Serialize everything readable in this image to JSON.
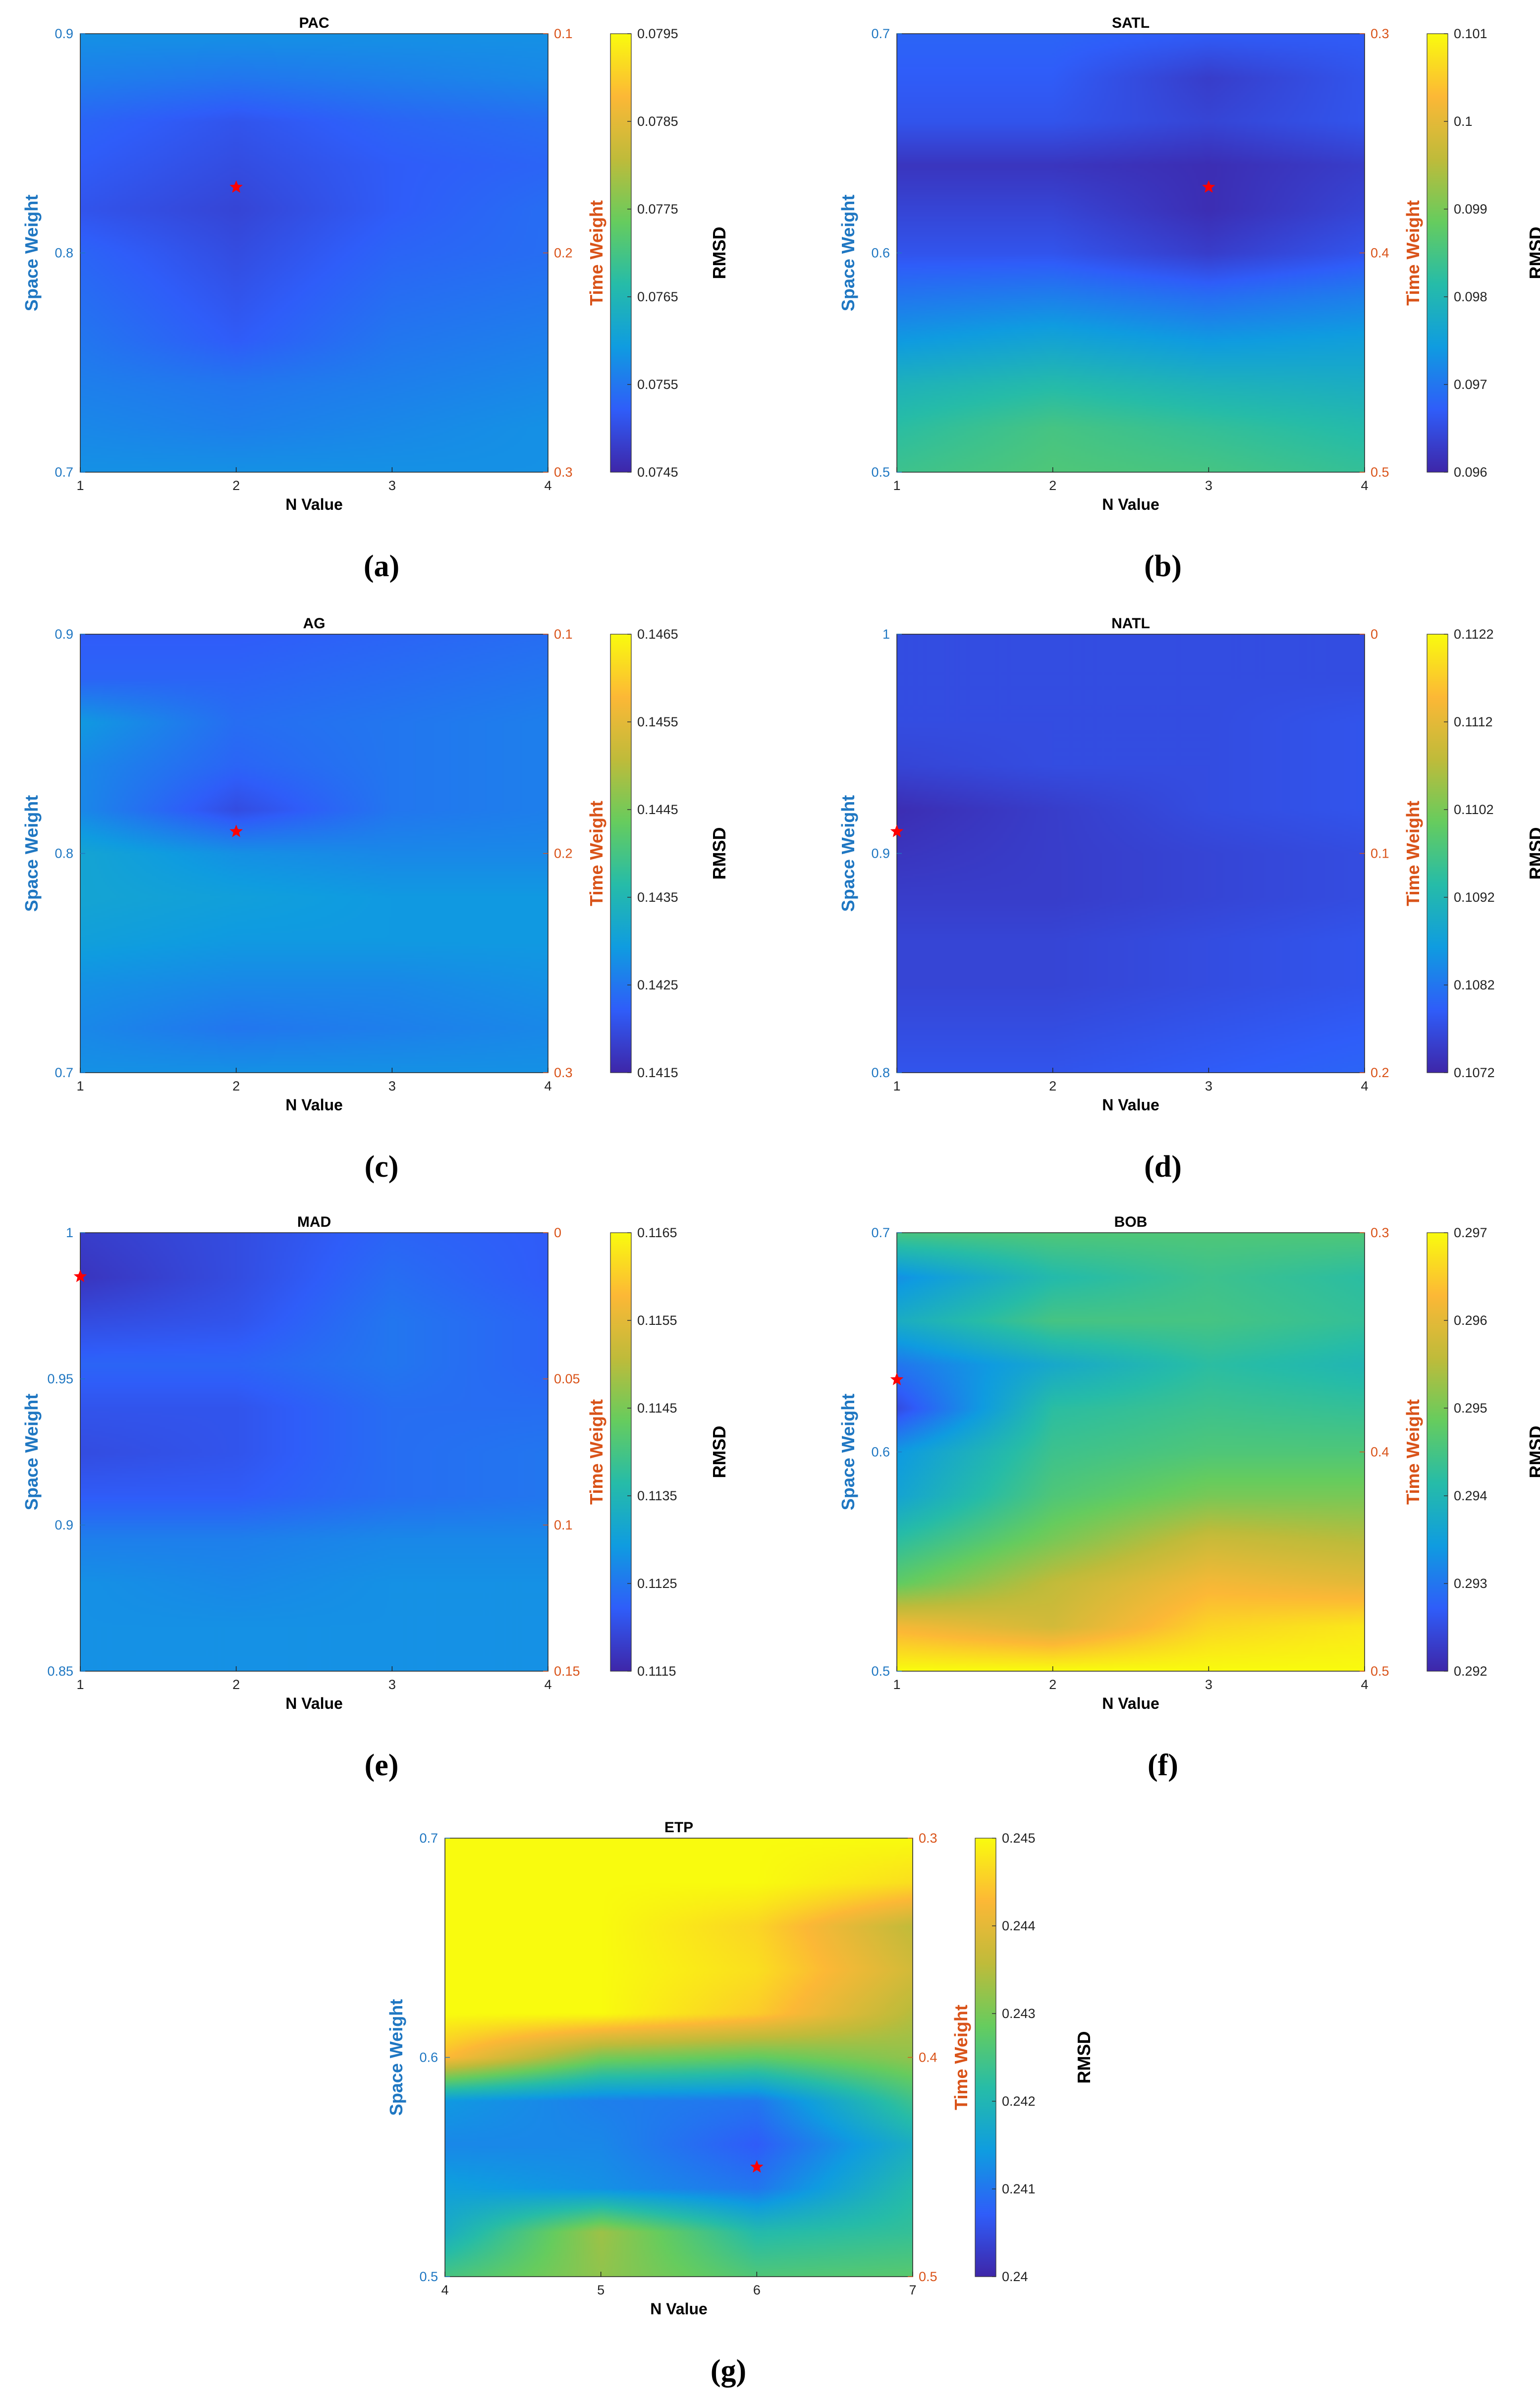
{
  "figure": {
    "space_axis_label": "Space Weight",
    "time_axis_label": "Time Weight",
    "x_axis_label": "N Value",
    "colorbar_label": "RMSD",
    "colors": {
      "space_axis": "#1f77c2",
      "time_axis": "#d95319",
      "marker": "#ff0000",
      "frame": "#000000"
    },
    "colormap": [
      "#3e26a8",
      "#2f5df9",
      "#0f9ce0",
      "#26bca8",
      "#66cc5e",
      "#bfbb3a",
      "#fcb836",
      "#f9fb0e"
    ]
  },
  "chart_data": [
    {
      "type": "heatmap",
      "id": "a",
      "title": "PAC",
      "caption": "(a)",
      "x": [
        1,
        2,
        3,
        4
      ],
      "xticks": [
        "1",
        "2",
        "3",
        "4"
      ],
      "ylim": [
        0.7,
        0.9
      ],
      "yticks": [
        "0.7",
        "0.8",
        "0.9"
      ],
      "y2ticks": [
        "0.3",
        "0.2",
        "0.1"
      ],
      "clim": [
        0.0745,
        0.0795
      ],
      "cticks": [
        "0.0745",
        "0.0755",
        "0.0765",
        "0.0775",
        "0.0785",
        "0.0795"
      ],
      "marker": {
        "x": 2,
        "y": 0.83
      },
      "y": [
        0.7,
        0.72,
        0.74,
        0.76,
        0.78,
        0.8,
        0.82,
        0.84,
        0.86,
        0.88,
        0.9
      ],
      "z": [
        [
          0.0758,
          0.0758,
          0.0758,
          0.0758
        ],
        [
          0.0757,
          0.0756,
          0.0757,
          0.0758
        ],
        [
          0.0756,
          0.0755,
          0.0756,
          0.0757
        ],
        [
          0.0755,
          0.0752,
          0.0755,
          0.0756
        ],
        [
          0.0754,
          0.0751,
          0.0754,
          0.0755
        ],
        [
          0.0753,
          0.075,
          0.0753,
          0.0754
        ],
        [
          0.0751,
          0.0749,
          0.0752,
          0.0754
        ],
        [
          0.0752,
          0.075,
          0.0752,
          0.0753
        ],
        [
          0.0753,
          0.0751,
          0.0753,
          0.0754
        ],
        [
          0.0756,
          0.0755,
          0.0756,
          0.0757
        ],
        [
          0.0758,
          0.0758,
          0.0758,
          0.0758
        ]
      ]
    },
    {
      "type": "heatmap",
      "id": "b",
      "title": "SATL",
      "caption": "(b)",
      "x": [
        1,
        2,
        3,
        4
      ],
      "xticks": [
        "1",
        "2",
        "3",
        "4"
      ],
      "ylim": [
        0.5,
        0.7
      ],
      "yticks": [
        "0.5",
        "0.6",
        "0.7"
      ],
      "y2ticks": [
        "0.5",
        "0.4",
        "0.3"
      ],
      "clim": [
        0.096,
        0.101
      ],
      "cticks": [
        "0.096",
        "0.097",
        "0.098",
        "0.099",
        "0.1",
        "0.101"
      ],
      "marker": {
        "x": 3,
        "y": 0.63
      },
      "y": [
        0.5,
        0.52,
        0.54,
        0.56,
        0.58,
        0.6,
        0.62,
        0.64,
        0.66,
        0.68,
        0.7
      ],
      "z": [
        [
          0.0984,
          0.0986,
          0.0985,
          0.0983
        ],
        [
          0.0982,
          0.0985,
          0.0983,
          0.0981
        ],
        [
          0.0979,
          0.0981,
          0.0979,
          0.0978
        ],
        [
          0.0974,
          0.0976,
          0.0974,
          0.0975
        ],
        [
          0.097,
          0.0971,
          0.0969,
          0.0971
        ],
        [
          0.0966,
          0.0966,
          0.0963,
          0.0966
        ],
        [
          0.0964,
          0.0964,
          0.0961,
          0.0964
        ],
        [
          0.0962,
          0.0962,
          0.0961,
          0.0963
        ],
        [
          0.0966,
          0.0966,
          0.0964,
          0.0966
        ],
        [
          0.0967,
          0.0967,
          0.0963,
          0.0966
        ],
        [
          0.0968,
          0.0968,
          0.0967,
          0.0967
        ]
      ]
    },
    {
      "type": "heatmap",
      "id": "c",
      "title": "AG",
      "caption": "(c)",
      "x": [
        1,
        2,
        3,
        4
      ],
      "xticks": [
        "1",
        "2",
        "3",
        "4"
      ],
      "ylim": [
        0.7,
        0.9
      ],
      "yticks": [
        "0.7",
        "0.8",
        "0.9"
      ],
      "y2ticks": [
        "0.3",
        "0.2",
        "0.1"
      ],
      "clim": [
        0.1415,
        0.1465
      ],
      "cticks": [
        "0.1415",
        "0.1425",
        "0.1435",
        "0.1445",
        "0.1455",
        "0.1465"
      ],
      "marker": {
        "x": 2,
        "y": 0.81
      },
      "y": [
        0.7,
        0.72,
        0.74,
        0.76,
        0.78,
        0.8,
        0.82,
        0.84,
        0.86,
        0.88,
        0.9
      ],
      "z": [
        [
          0.1428,
          0.1428,
          0.1428,
          0.1428
        ],
        [
          0.1427,
          0.1425,
          0.1426,
          0.1427
        ],
        [
          0.1428,
          0.1427,
          0.1427,
          0.1428
        ],
        [
          0.143,
          0.1429,
          0.1429,
          0.1429
        ],
        [
          0.1431,
          0.143,
          0.1429,
          0.1429
        ],
        [
          0.1431,
          0.1428,
          0.1427,
          0.1427
        ],
        [
          0.1427,
          0.142,
          0.1425,
          0.1426
        ],
        [
          0.1427,
          0.1423,
          0.1425,
          0.1426
        ],
        [
          0.1429,
          0.1424,
          0.1425,
          0.1426
        ],
        [
          0.1423,
          0.1423,
          0.1424,
          0.1425
        ],
        [
          0.1422,
          0.1422,
          0.1423,
          0.1424
        ]
      ]
    },
    {
      "type": "heatmap",
      "id": "d",
      "title": "NATL",
      "caption": "(d)",
      "x": [
        1,
        2,
        3,
        4
      ],
      "xticks": [
        "1",
        "2",
        "3",
        "4"
      ],
      "ylim": [
        0.8,
        1.0
      ],
      "yticks": [
        "0.8",
        "0.9",
        "1"
      ],
      "y2ticks": [
        "0.2",
        "0.1",
        "0"
      ],
      "clim": [
        0.1072,
        0.1122
      ],
      "cticks": [
        "0.1072",
        "0.1082",
        "0.1092",
        "0.1102",
        "0.1112",
        "0.1122"
      ],
      "marker": {
        "x": 1,
        "y": 0.91
      },
      "y": [
        0.8,
        0.82,
        0.84,
        0.86,
        0.88,
        0.9,
        0.92,
        0.94,
        0.96,
        0.98,
        1.0
      ],
      "z": [
        [
          0.1078,
          0.1078,
          0.1079,
          0.108
        ],
        [
          0.1077,
          0.1077,
          0.1078,
          0.1079
        ],
        [
          0.1076,
          0.1076,
          0.1077,
          0.1078
        ],
        [
          0.1076,
          0.1076,
          0.1077,
          0.1078
        ],
        [
          0.1075,
          0.1075,
          0.1076,
          0.1077
        ],
        [
          0.1074,
          0.1075,
          0.1076,
          0.1077
        ],
        [
          0.1073,
          0.1075,
          0.1077,
          0.1078
        ],
        [
          0.1076,
          0.1077,
          0.1077,
          0.1078
        ],
        [
          0.1077,
          0.1077,
          0.1077,
          0.1078
        ],
        [
          0.1077,
          0.1077,
          0.1077,
          0.1077
        ],
        [
          0.1077,
          0.1077,
          0.1077,
          0.1077
        ]
      ]
    },
    {
      "type": "heatmap",
      "id": "e",
      "title": "MAD",
      "caption": "(e)",
      "x": [
        1,
        2,
        3,
        4
      ],
      "xticks": [
        "1",
        "2",
        "3",
        "4"
      ],
      "ylim": [
        0.85,
        1.0
      ],
      "yticks": [
        "0.85",
        "0.9",
        "0.95",
        "1"
      ],
      "y2ticks": [
        "0.15",
        "0.1",
        "0.05",
        "0"
      ],
      "clim": [
        0.1115,
        0.1165
      ],
      "cticks": [
        "0.1115",
        "0.1125",
        "0.1135",
        "0.1145",
        "0.1155",
        "0.1165"
      ],
      "marker": {
        "x": 1,
        "y": 0.985
      },
      "y": [
        0.85,
        0.865,
        0.88,
        0.895,
        0.91,
        0.925,
        0.94,
        0.955,
        0.97,
        0.985,
        1.0
      ],
      "z": [
        [
          0.1128,
          0.1128,
          0.1128,
          0.1128
        ],
        [
          0.1128,
          0.1128,
          0.1128,
          0.1128
        ],
        [
          0.1128,
          0.1127,
          0.1128,
          0.1128
        ],
        [
          0.1126,
          0.1126,
          0.1127,
          0.1127
        ],
        [
          0.1122,
          0.1122,
          0.1124,
          0.1125
        ],
        [
          0.112,
          0.1121,
          0.1124,
          0.1125
        ],
        [
          0.1121,
          0.1121,
          0.1124,
          0.1124
        ],
        [
          0.1123,
          0.1123,
          0.1125,
          0.1123
        ],
        [
          0.112,
          0.1121,
          0.1125,
          0.1123
        ],
        [
          0.1117,
          0.112,
          0.1124,
          0.1122
        ],
        [
          0.1118,
          0.112,
          0.1123,
          0.1122
        ]
      ]
    },
    {
      "type": "heatmap",
      "id": "f",
      "title": "BOB",
      "caption": "(f)",
      "x": [
        1,
        2,
        3,
        4
      ],
      "xticks": [
        "1",
        "2",
        "3",
        "4"
      ],
      "ylim": [
        0.5,
        0.7
      ],
      "yticks": [
        "0.5",
        "0.6",
        "0.7"
      ],
      "y2ticks": [
        "0.5",
        "0.4",
        "0.3"
      ],
      "clim": [
        0.292,
        0.297
      ],
      "cticks": [
        "0.292",
        "0.293",
        "0.294",
        "0.295",
        "0.296",
        "0.297"
      ],
      "marker": {
        "x": 1,
        "y": 0.633
      },
      "y": [
        0.5,
        0.52,
        0.54,
        0.56,
        0.58,
        0.6,
        0.62,
        0.64,
        0.66,
        0.68,
        0.7
      ],
      "z": [
        [
          0.297,
          0.297,
          0.297,
          0.297
        ],
        [
          0.2962,
          0.2958,
          0.2966,
          0.2968
        ],
        [
          0.2948,
          0.2956,
          0.2962,
          0.296
        ],
        [
          0.2942,
          0.295,
          0.2957,
          0.2955
        ],
        [
          0.2936,
          0.2946,
          0.295,
          0.295
        ],
        [
          0.2934,
          0.2944,
          0.2946,
          0.2946
        ],
        [
          0.2925,
          0.2942,
          0.2944,
          0.2943
        ],
        [
          0.293,
          0.2937,
          0.2942,
          0.294
        ],
        [
          0.2938,
          0.2945,
          0.2945,
          0.2943
        ],
        [
          0.2933,
          0.2941,
          0.2944,
          0.2942
        ],
        [
          0.2945,
          0.2946,
          0.2946,
          0.2946
        ]
      ]
    },
    {
      "type": "heatmap",
      "id": "g",
      "title": "ETP",
      "caption": "(g)",
      "x": [
        4,
        5,
        6,
        7
      ],
      "xticks": [
        "4",
        "5",
        "6",
        "7"
      ],
      "ylim": [
        0.5,
        0.7
      ],
      "yticks": [
        "0.5",
        "0.6",
        "0.7"
      ],
      "y2ticks": [
        "0.5",
        "0.4",
        "0.3"
      ],
      "clim": [
        0.24,
        0.245
      ],
      "cticks": [
        "0.24",
        "0.241",
        "0.242",
        "0.243",
        "0.244",
        "0.245"
      ],
      "marker": {
        "x": 6,
        "y": 0.55
      },
      "y": [
        0.5,
        0.52,
        0.54,
        0.56,
        0.58,
        0.6,
        0.62,
        0.64,
        0.66,
        0.68,
        0.7
      ],
      "z": [
        [
          0.2425,
          0.2432,
          0.2426,
          0.2427
        ],
        [
          0.2418,
          0.2433,
          0.2421,
          0.2423
        ],
        [
          0.2415,
          0.2413,
          0.241,
          0.2421
        ],
        [
          0.2412,
          0.2412,
          0.2407,
          0.2418
        ],
        [
          0.2414,
          0.2411,
          0.241,
          0.2424
        ],
        [
          0.2443,
          0.243,
          0.2428,
          0.2432
        ],
        [
          0.245,
          0.245,
          0.2445,
          0.2435
        ],
        [
          0.245,
          0.245,
          0.2447,
          0.2438
        ],
        [
          0.245,
          0.245,
          0.2446,
          0.2436
        ],
        [
          0.245,
          0.245,
          0.245,
          0.2447
        ],
        [
          0.245,
          0.245,
          0.245,
          0.245
        ]
      ]
    }
  ]
}
